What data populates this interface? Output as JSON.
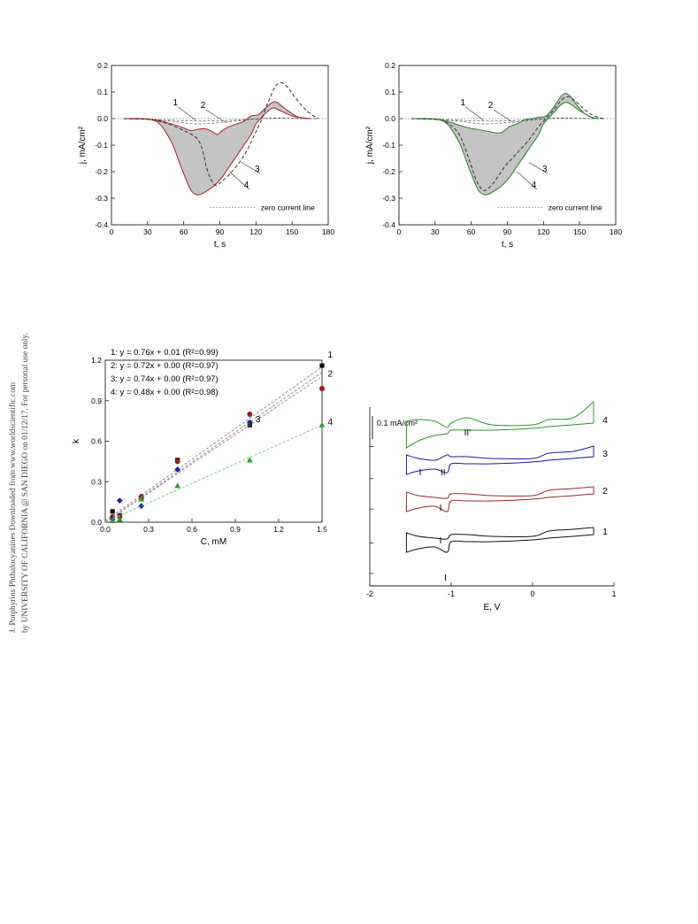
{
  "sidebar_note": {
    "line1": "J. Porphyrins Phthalocyanines Downloaded from www.worldscientific.com",
    "line2": "by UNIVERSITY OF CALIFORNIA @ SAN DIEGO on 01/12/17. For personal use only."
  },
  "chart_data": [
    {
      "type": "line",
      "panel": "top-left",
      "xlabel": "t, s",
      "ylabel": "j, mA/cm²",
      "xlim": [
        0,
        180
      ],
      "ylim": [
        -0.4,
        0.2
      ],
      "xticks": [
        0,
        30,
        60,
        90,
        120,
        150,
        180
      ],
      "yticks": [
        -0.4,
        -0.3,
        -0.2,
        -0.1,
        0.0,
        0.1,
        0.2
      ],
      "legend": "zero current line",
      "accent_color": "#b03030",
      "fill_color": "#c4c4c4",
      "series": [
        {
          "name": "1",
          "style": "dashed-light",
          "x": [
            10,
            30,
            50,
            70,
            90,
            110,
            130,
            150,
            170
          ],
          "y": [
            0,
            -0.002,
            -0.006,
            -0.009,
            -0.008,
            -0.004,
            0.001,
            0.001,
            0
          ]
        },
        {
          "name": "2",
          "style": "dashed-light",
          "x": [
            10,
            30,
            50,
            70,
            90,
            110,
            130,
            150,
            170
          ],
          "y": [
            0,
            -0.003,
            -0.01,
            -0.02,
            -0.015,
            -0.006,
            0.002,
            0.001,
            0
          ]
        },
        {
          "name": "3",
          "style": "solid",
          "x": [
            10,
            30,
            40,
            50,
            60,
            66,
            72,
            78,
            84,
            88,
            92,
            98,
            104,
            110,
            116,
            122,
            128,
            134,
            138,
            142,
            148,
            154,
            160,
            166
          ],
          "y": [
            0,
            -0.002,
            -0.008,
            -0.02,
            -0.035,
            -0.045,
            -0.04,
            -0.038,
            -0.05,
            -0.06,
            -0.045,
            -0.03,
            -0.02,
            -0.01,
            0.01,
            0.015,
            0.04,
            0.062,
            0.06,
            0.045,
            0.025,
            0.008,
            0.002,
            0
          ]
        },
        {
          "name": "4",
          "style": "solid",
          "x": [
            10,
            30,
            40,
            50,
            56,
            62,
            66,
            70,
            74,
            80,
            86,
            92,
            98,
            104,
            110,
            116,
            120,
            124,
            128,
            134,
            140,
            150,
            160,
            166
          ],
          "y": [
            0,
            -0.002,
            -0.02,
            -0.09,
            -0.16,
            -0.23,
            -0.27,
            -0.285,
            -0.285,
            -0.27,
            -0.25,
            -0.22,
            -0.18,
            -0.14,
            -0.1,
            -0.06,
            -0.02,
            0.0,
            0.02,
            0.04,
            0.03,
            0.01,
            0.002,
            0
          ]
        },
        {
          "name": "",
          "style": "dashed-dark",
          "x": [
            10,
            30,
            40,
            50,
            60,
            70,
            75,
            80,
            86,
            92,
            100,
            110,
            120,
            125,
            130,
            136,
            141,
            146,
            150,
            156,
            162,
            168,
            172
          ],
          "y": [
            0,
            -0.003,
            -0.01,
            -0.025,
            -0.045,
            -0.07,
            -0.11,
            -0.2,
            -0.25,
            -0.235,
            -0.2,
            -0.14,
            -0.05,
            0.0,
            0.06,
            0.12,
            0.135,
            0.12,
            0.095,
            0.06,
            0.03,
            0.01,
            0
          ]
        }
      ],
      "labels": [
        "1",
        "2",
        "3",
        "4"
      ]
    },
    {
      "type": "line",
      "panel": "top-right",
      "xlabel": "t, s",
      "ylabel": "j, mA/cm²",
      "xlim": [
        0,
        180
      ],
      "ylim": [
        -0.4,
        0.2
      ],
      "xticks": [
        0,
        30,
        60,
        90,
        120,
        150,
        180
      ],
      "yticks": [
        -0.4,
        -0.3,
        -0.2,
        -0.1,
        0.0,
        0.1,
        0.2
      ],
      "legend": "zero current line",
      "accent_color": "#2e8b2e",
      "fill_color": "#c4c4c4",
      "series": [
        {
          "name": "1",
          "style": "dashed-light",
          "x": [
            10,
            30,
            50,
            70,
            90,
            110,
            130,
            150,
            170
          ],
          "y": [
            0,
            -0.002,
            -0.006,
            -0.009,
            -0.008,
            -0.004,
            0.001,
            0.001,
            0
          ]
        },
        {
          "name": "2",
          "style": "dashed-light",
          "x": [
            10,
            30,
            50,
            70,
            90,
            110,
            130,
            150,
            170
          ],
          "y": [
            0,
            -0.003,
            -0.01,
            -0.02,
            -0.015,
            -0.006,
            0.002,
            0.001,
            0
          ]
        },
        {
          "name": "3",
          "style": "solid",
          "x": [
            10,
            30,
            40,
            50,
            58,
            64,
            70,
            76,
            82,
            86,
            92,
            98,
            104,
            110,
            116,
            122,
            128,
            134,
            138,
            142,
            148,
            154,
            160,
            166
          ],
          "y": [
            0,
            -0.002,
            -0.01,
            -0.025,
            -0.035,
            -0.04,
            -0.045,
            -0.05,
            -0.055,
            -0.05,
            -0.03,
            -0.02,
            -0.005,
            0.0,
            0.005,
            0.01,
            0.04,
            0.08,
            0.095,
            0.085,
            0.05,
            0.02,
            0.005,
            0
          ]
        },
        {
          "name": "4",
          "style": "solid",
          "x": [
            10,
            30,
            40,
            50,
            56,
            62,
            66,
            70,
            74,
            80,
            86,
            92,
            98,
            104,
            110,
            116,
            120,
            124,
            128,
            134,
            140,
            150,
            160,
            166
          ],
          "y": [
            0,
            -0.002,
            -0.02,
            -0.09,
            -0.16,
            -0.23,
            -0.27,
            -0.285,
            -0.285,
            -0.27,
            -0.25,
            -0.22,
            -0.18,
            -0.14,
            -0.1,
            -0.06,
            -0.02,
            0.0,
            0.02,
            0.05,
            0.06,
            0.03,
            0.005,
            0
          ]
        },
        {
          "name": "",
          "style": "dashed-dark",
          "x": [
            10,
            30,
            40,
            50,
            58,
            64,
            70,
            76,
            82,
            88,
            94,
            100,
            108,
            116,
            122,
            128,
            134,
            138,
            142,
            148,
            154,
            160,
            166,
            170
          ],
          "y": [
            0,
            -0.003,
            -0.015,
            -0.06,
            -0.15,
            -0.23,
            -0.27,
            -0.255,
            -0.22,
            -0.18,
            -0.15,
            -0.12,
            -0.08,
            -0.03,
            0.0,
            0.03,
            0.065,
            0.08,
            0.08,
            0.06,
            0.035,
            0.015,
            0.004,
            0
          ]
        }
      ],
      "labels": [
        "1",
        "2",
        "3",
        "4"
      ]
    },
    {
      "type": "scatter",
      "panel": "bottom-left",
      "xlabel": "C, mM",
      "ylabel": "k",
      "xlim": [
        0,
        1.5
      ],
      "ylim": [
        0,
        1.2
      ],
      "xticks": [
        0.0,
        0.3,
        0.6,
        0.9,
        1.2,
        1.5
      ],
      "yticks": [
        0.0,
        0.3,
        0.6,
        0.9,
        1.2
      ],
      "equations": [
        "1:  y = 0.76x + 0.01 (R²=0.99)",
        "2:  y = 0.72x + 0.00 (R²=0.97)",
        "3:  y = 0.74x + 0.00 (R²=0.97)",
        "4:  y = 0.48x + 0.00 (R²=0.98)"
      ],
      "series": [
        {
          "name": "1",
          "marker": "square",
          "color": "#111111",
          "line_color": "#9a80a8",
          "slope": 0.76,
          "intercept": 0.01,
          "x": [
            0.05,
            0.1,
            0.25,
            0.5,
            1.0,
            1.5
          ],
          "y": [
            0.08,
            0.05,
            0.18,
            0.46,
            0.72,
            1.16
          ]
        },
        {
          "name": "2",
          "marker": "circle",
          "color": "#9a1a1a",
          "line_color": "#c48080",
          "slope": 0.72,
          "intercept": 0.0,
          "x": [
            0.05,
            0.1,
            0.25,
            0.5,
            1.0,
            1.5
          ],
          "y": [
            0.04,
            0.04,
            0.19,
            0.45,
            0.8,
            0.99
          ]
        },
        {
          "name": "3",
          "marker": "diamond",
          "color": "#1a2a9a",
          "line_color": "#7f8fb8",
          "slope": 0.74,
          "intercept": 0.0,
          "x": [
            0.05,
            0.1,
            0.25,
            0.5,
            1.0
          ],
          "y": [
            0.02,
            0.16,
            0.12,
            0.39,
            0.74
          ]
        },
        {
          "name": "4",
          "marker": "triangle",
          "color": "#2aa02a",
          "line_color": "#7fcf7f",
          "slope": 0.48,
          "intercept": 0.0,
          "x": [
            0.05,
            0.1,
            0.25,
            0.5,
            1.0,
            1.5
          ],
          "y": [
            0.01,
            0.02,
            0.17,
            0.27,
            0.46,
            0.72
          ]
        }
      ],
      "labels": [
        "1",
        "2",
        "3",
        "4"
      ]
    },
    {
      "type": "line",
      "panel": "bottom-right",
      "xlabel": "E, V",
      "xlim": [
        -2,
        1
      ],
      "xticks": [
        -2,
        -1,
        0,
        1
      ],
      "scale_bar": "0.1 mA/cm²",
      "series": [
        {
          "name": "1",
          "color": "#111111"
        },
        {
          "name": "2",
          "color": "#9a2a2a"
        },
        {
          "name": "3",
          "color": "#1a1aa0"
        },
        {
          "name": "4",
          "color": "#2a9a2a"
        }
      ],
      "annotations": [
        "I",
        "I",
        "I",
        "II",
        "I",
        "II'"
      ]
    }
  ]
}
